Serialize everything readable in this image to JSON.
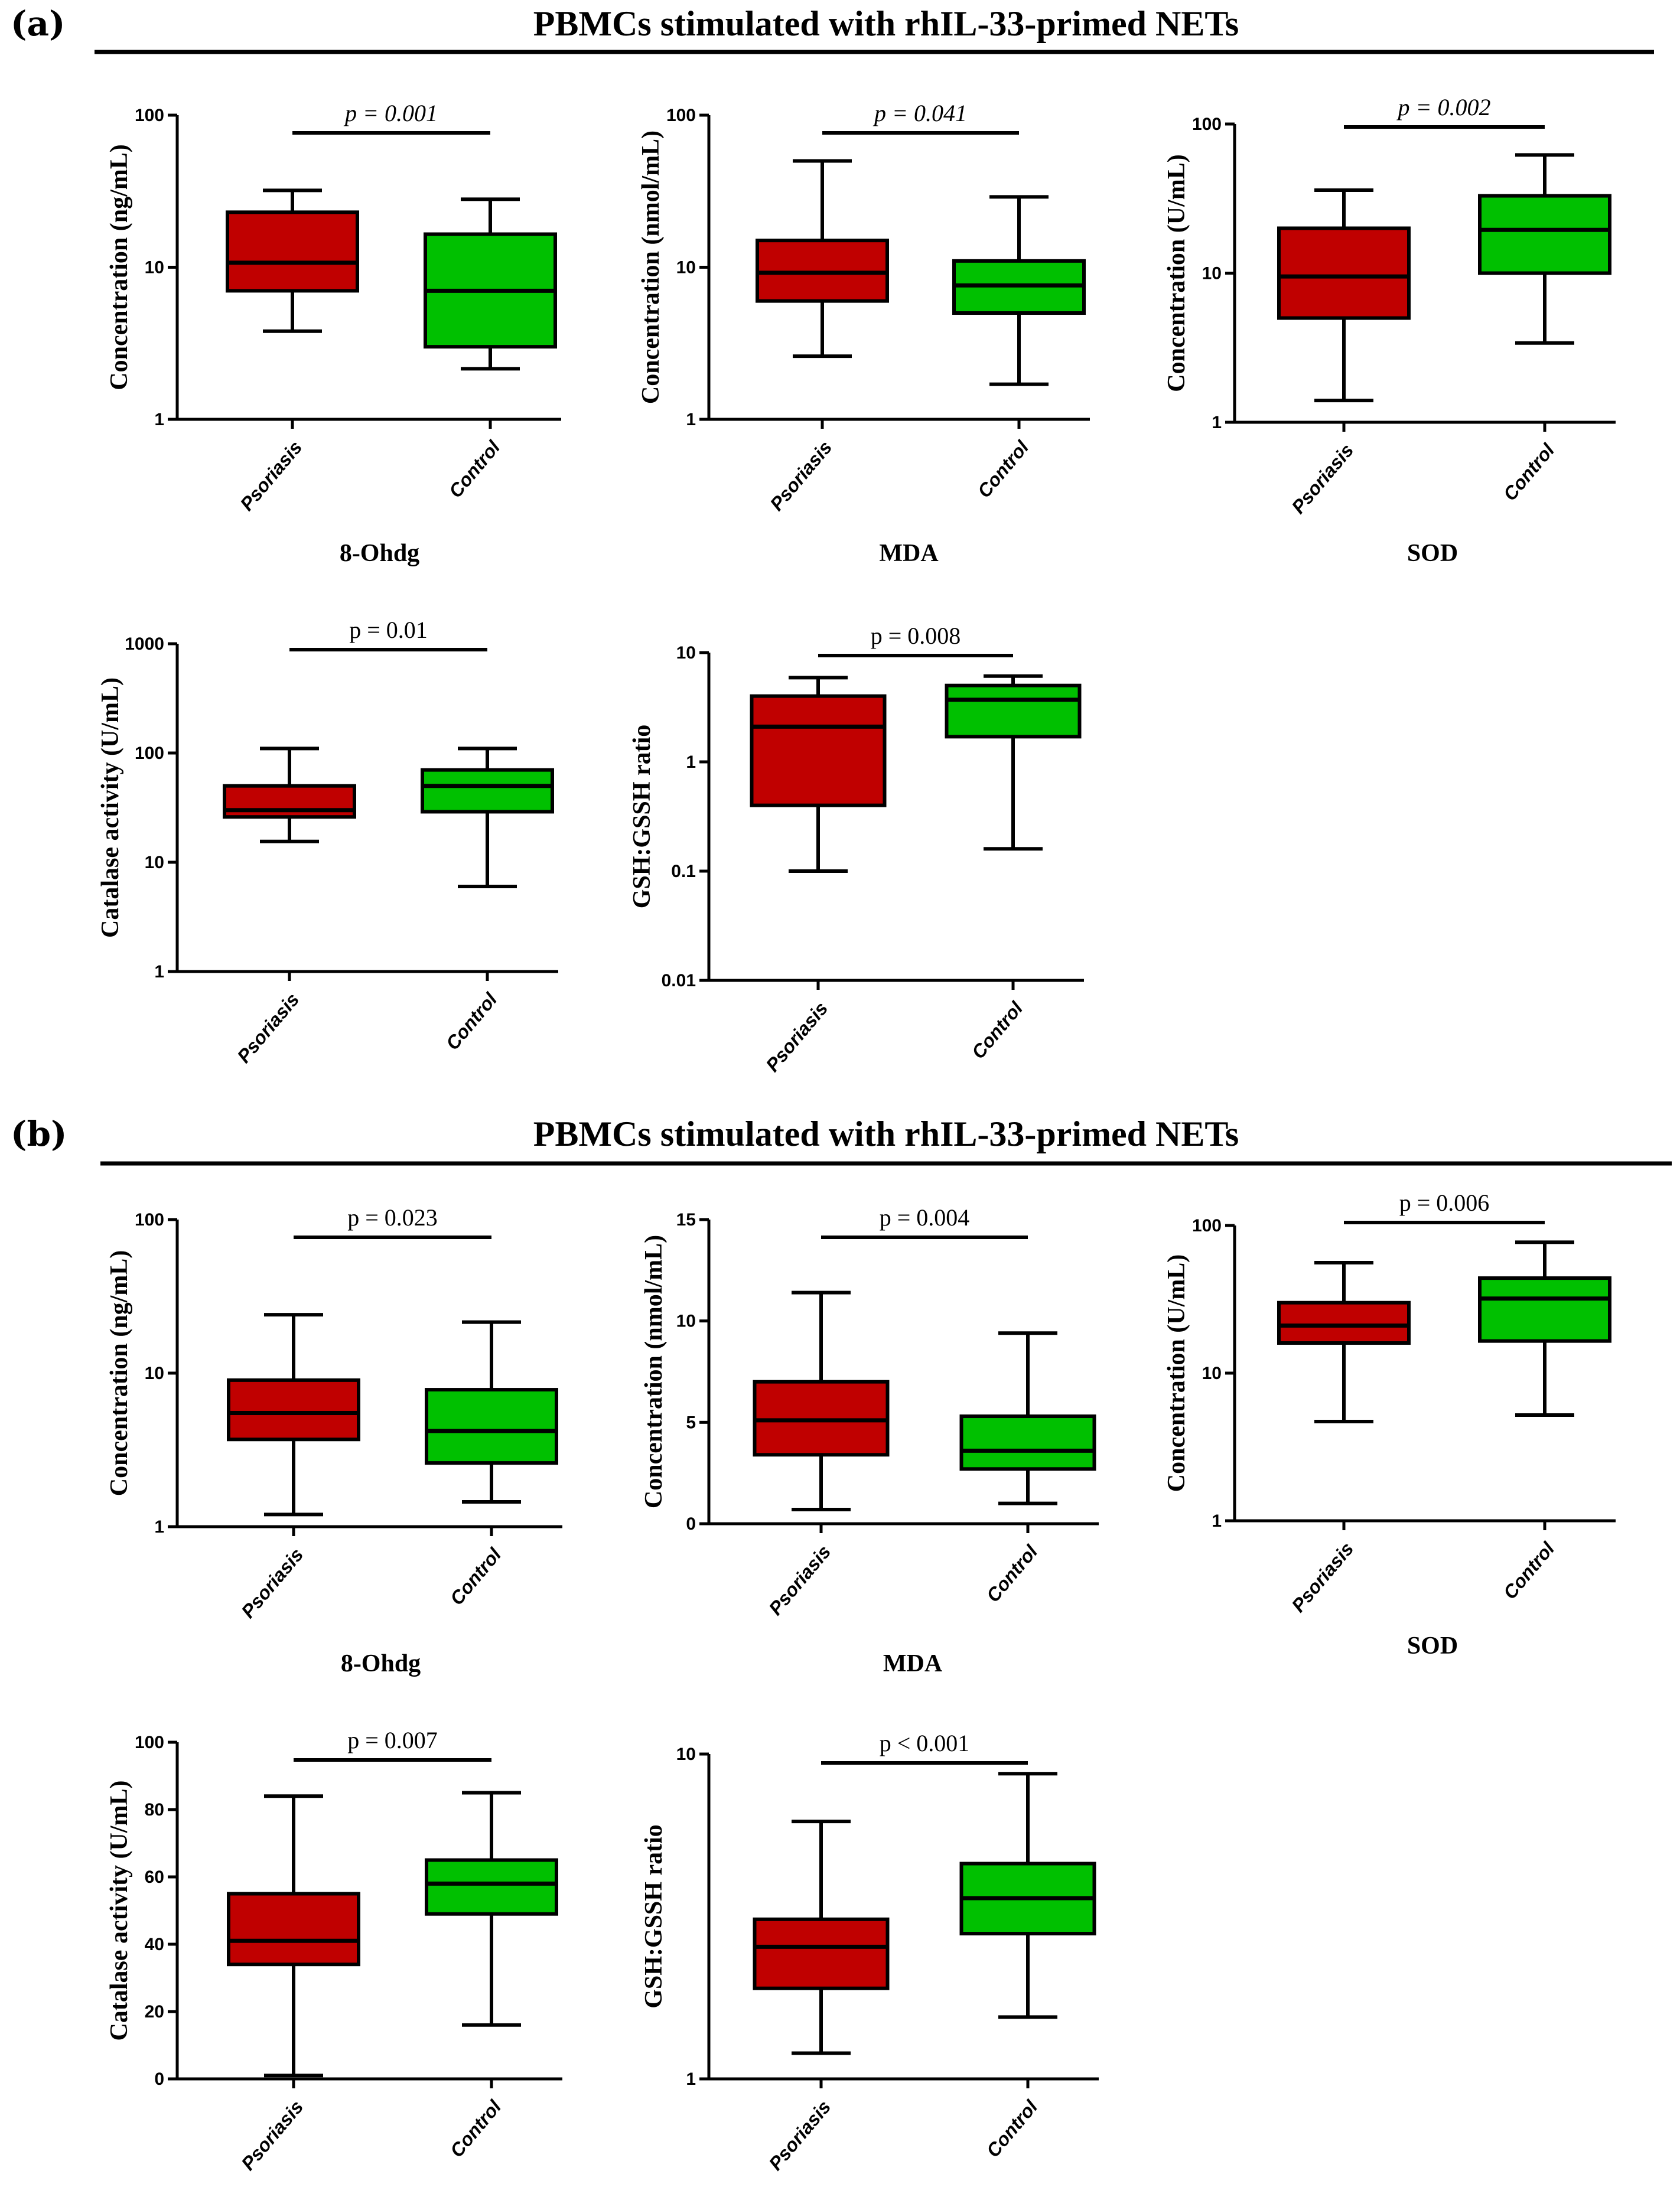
{
  "figure": {
    "sections": [
      {
        "label": "(a)",
        "title": "PBMCs  stimulated with  rhIL-33-primed NETs"
      },
      {
        "label": "(b)",
        "title": "PBMCs  stimulated with  rhIL-33-primed NETs"
      }
    ],
    "colors": {
      "psoriasis": "#c00000",
      "control": "#00c000",
      "axis": "#000000"
    }
  },
  "chart_data": [
    {
      "type": "boxplot",
      "section": "(a)",
      "scale": "log",
      "ylim": [
        1,
        100
      ],
      "yticks": [
        1,
        10,
        100
      ],
      "ytick_labels": [
        "1",
        "10",
        "100"
      ],
      "ylabel": "Concentration (ng/mL)",
      "xlabel": "8-Ohdg",
      "categories": [
        "Psoriasis",
        "Control"
      ],
      "series": [
        {
          "name": "Psoriasis",
          "min": 3.8,
          "q1": 7.0,
          "median": 10.7,
          "q3": 23.0,
          "max": 32.0
        },
        {
          "name": "Control",
          "min": 2.15,
          "q1": 3.0,
          "median": 7.0,
          "q3": 16.5,
          "max": 28.0
        }
      ],
      "p_value": "p = 0.001"
    },
    {
      "type": "boxplot",
      "section": "(a)",
      "scale": "log",
      "ylim": [
        1,
        100
      ],
      "yticks": [
        1,
        10,
        100
      ],
      "ytick_labels": [
        "1",
        "10",
        "100"
      ],
      "ylabel": "Concentration (nmol/mL)",
      "xlabel": "MDA",
      "categories": [
        "Psoriasis",
        "Control"
      ],
      "series": [
        {
          "name": "Psoriasis",
          "min": 2.6,
          "q1": 6.0,
          "median": 9.2,
          "q3": 15.0,
          "max": 50.0
        },
        {
          "name": "Control",
          "min": 1.7,
          "q1": 5.0,
          "median": 7.6,
          "q3": 11.0,
          "max": 29.0
        }
      ],
      "p_value": "p = 0.041"
    },
    {
      "type": "boxplot",
      "section": "(a)",
      "scale": "log",
      "ylim": [
        1,
        100
      ],
      "yticks": [
        1,
        10,
        100
      ],
      "ytick_labels": [
        "1",
        "10",
        "100"
      ],
      "ylabel": "Concentration (U/mL)",
      "xlabel": "SOD",
      "categories": [
        "Psoriasis",
        "Control"
      ],
      "series": [
        {
          "name": "Psoriasis",
          "min": 1.4,
          "q1": 5.0,
          "median": 9.5,
          "q3": 20.0,
          "max": 36.0
        },
        {
          "name": "Control",
          "min": 3.4,
          "q1": 10.0,
          "median": 19.5,
          "q3": 33.0,
          "max": 62.0
        }
      ],
      "p_value": "p = 0.002"
    },
    {
      "type": "boxplot",
      "section": "(a)",
      "scale": "log",
      "ylim": [
        1,
        1000
      ],
      "yticks": [
        1,
        10,
        100,
        1000
      ],
      "ytick_labels": [
        "1",
        "10",
        "100",
        "1000"
      ],
      "ylabel": "Catalase activity (U/mL)",
      "xlabel": "",
      "categories": [
        "Psoriasis",
        "Control"
      ],
      "series": [
        {
          "name": "Psoriasis",
          "min": 15.5,
          "q1": 26.0,
          "median": 30.0,
          "q3": 50.0,
          "max": 110.0
        },
        {
          "name": "Control",
          "min": 6.0,
          "q1": 29.0,
          "median": 50.0,
          "q3": 70.0,
          "max": 110.0
        }
      ],
      "p_value": "p = 0.01"
    },
    {
      "type": "boxplot",
      "section": "(a)",
      "scale": "log",
      "ylim": [
        0.01,
        10
      ],
      "yticks": [
        0.01,
        0.1,
        1,
        10
      ],
      "ytick_labels": [
        "0.01",
        "0.1",
        "1",
        "10"
      ],
      "ylabel": "GSH:GSSH ratio",
      "xlabel": "",
      "categories": [
        "Psoriasis",
        "Control"
      ],
      "series": [
        {
          "name": "Psoriasis",
          "min": 0.1,
          "q1": 0.4,
          "median": 2.1,
          "q3": 4.0,
          "max": 5.9
        },
        {
          "name": "Control",
          "min": 0.16,
          "q1": 1.7,
          "median": 3.7,
          "q3": 5.0,
          "max": 6.1
        }
      ],
      "p_value": "p = 0.008"
    },
    {
      "type": "boxplot",
      "section": "(b)",
      "scale": "log",
      "ylim": [
        1,
        100
      ],
      "yticks": [
        1,
        10,
        100
      ],
      "ytick_labels": [
        "1",
        "10",
        "100"
      ],
      "ylabel": "Concentration (ng/mL)",
      "xlabel": "8-Ohdg",
      "categories": [
        "Psoriasis",
        "Control"
      ],
      "series": [
        {
          "name": "Psoriasis",
          "min": 1.2,
          "q1": 3.7,
          "median": 5.5,
          "q3": 9.0,
          "max": 24.0
        },
        {
          "name": "Control",
          "min": 1.45,
          "q1": 2.6,
          "median": 4.2,
          "q3": 7.8,
          "max": 21.5
        }
      ],
      "p_value": "p = 0.023"
    },
    {
      "type": "boxplot",
      "section": "(b)",
      "scale": "linear",
      "ylim": [
        0,
        15
      ],
      "yticks": [
        0,
        5,
        10,
        15
      ],
      "ytick_labels": [
        "0",
        "5",
        "10",
        "15"
      ],
      "ylabel": "Concentration (nmol/mL)",
      "xlabel": "MDA",
      "categories": [
        "Psoriasis",
        "Control"
      ],
      "series": [
        {
          "name": "Psoriasis",
          "min": 0.7,
          "q1": 3.4,
          "median": 5.1,
          "q3": 7.0,
          "max": 11.4
        },
        {
          "name": "Control",
          "min": 1.0,
          "q1": 2.7,
          "median": 3.6,
          "q3": 5.3,
          "max": 9.4
        }
      ],
      "p_value": "p = 0.004"
    },
    {
      "type": "boxplot",
      "section": "(b)",
      "scale": "log",
      "ylim": [
        1,
        100
      ],
      "yticks": [
        1,
        10,
        100
      ],
      "ytick_labels": [
        "1",
        "10",
        "100"
      ],
      "ylabel": "Concentration (U/mL)",
      "xlabel": "SOD",
      "categories": [
        "Psoriasis",
        "Control"
      ],
      "series": [
        {
          "name": "Psoriasis",
          "min": 4.7,
          "q1": 16.0,
          "median": 21.0,
          "q3": 30.0,
          "max": 56.0
        },
        {
          "name": "Control",
          "min": 5.2,
          "q1": 16.5,
          "median": 32.0,
          "q3": 44.0,
          "max": 77.0
        }
      ],
      "p_value": "p = 0.006"
    },
    {
      "type": "boxplot",
      "section": "(b)",
      "scale": "linear",
      "ylim": [
        0,
        100
      ],
      "yticks": [
        0,
        20,
        40,
        60,
        80,
        100
      ],
      "ytick_labels": [
        "0",
        "20",
        "40",
        "60",
        "80",
        "100"
      ],
      "ylabel": "Catalase activity (U/mL)",
      "xlabel": "",
      "categories": [
        "Psoriasis",
        "Control"
      ],
      "series": [
        {
          "name": "Psoriasis",
          "min": 1.0,
          "q1": 34.0,
          "median": 41.0,
          "q3": 55.0,
          "max": 84.0
        },
        {
          "name": "Control",
          "min": 16.0,
          "q1": 49.0,
          "median": 58.0,
          "q3": 65.0,
          "max": 85.0
        }
      ],
      "p_value": "p = 0.007"
    },
    {
      "type": "boxplot",
      "section": "(b)",
      "scale": "log",
      "ylim": [
        1,
        10
      ],
      "yticks": [
        1,
        10
      ],
      "ytick_labels": [
        "1",
        "10"
      ],
      "ylabel": "GSH:GSSH ratio",
      "xlabel": "",
      "categories": [
        "Psoriasis",
        "Control"
      ],
      "series": [
        {
          "name": "Psoriasis",
          "min": 1.2,
          "q1": 1.9,
          "median": 2.55,
          "q3": 3.1,
          "max": 6.2
        },
        {
          "name": "Control",
          "min": 1.55,
          "q1": 2.8,
          "median": 3.6,
          "q3": 4.6,
          "max": 8.7
        }
      ],
      "p_value": "p < 0.001"
    }
  ]
}
